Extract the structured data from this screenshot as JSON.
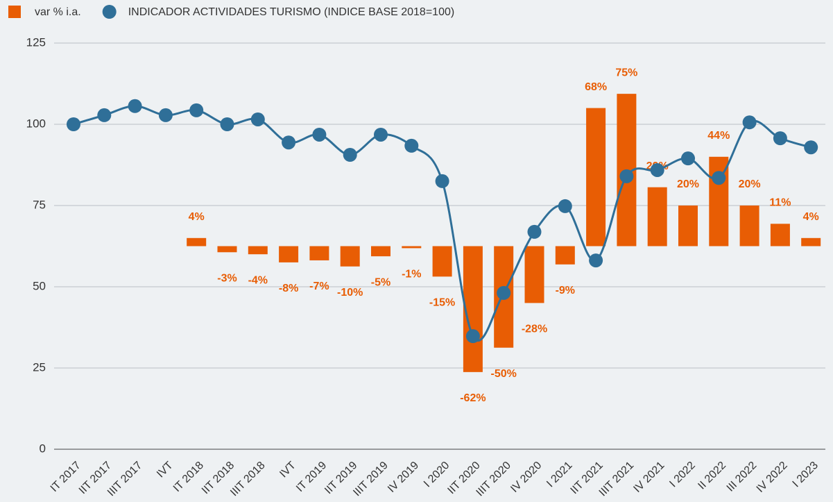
{
  "chart_data": {
    "type": "combo",
    "categories": [
      "IT 2017",
      "IIT 2017",
      "IIIT 2017",
      "IVT",
      "IT 2018",
      "IIT 2018",
      "IIIT 2018",
      "IVT",
      "IT 2019",
      "IIT 2019",
      "IIIT 2019",
      "IV 2019",
      "I 2020",
      "IIT 2020",
      "IIIT 2020",
      "IV 2020",
      "I 2021",
      "IIT 2021",
      "IIIT 2021",
      "IV 2021",
      "I 2022",
      "II 2022",
      "III 2022",
      "IV 2022",
      "I 2023"
    ],
    "series": [
      {
        "name": "var % i.a.",
        "type": "bar",
        "axis": "y2",
        "color": "#e85d04",
        "values": [
          null,
          null,
          null,
          null,
          4,
          -3,
          -4,
          -8,
          -7,
          -10,
          -5,
          -1,
          -15,
          -62,
          -50,
          -28,
          -9,
          68,
          75,
          29,
          20,
          44,
          20,
          11,
          4
        ],
        "value_labels": [
          null,
          null,
          null,
          null,
          "4%",
          "-3%",
          "-4%",
          "-8%",
          "-7%",
          "-10%",
          "-5%",
          "-1%",
          "-15%",
          "-62%",
          "-50%",
          "-28%",
          "-9%",
          "68%",
          "75%",
          "29%",
          "20%",
          "44%",
          "20%",
          "11%",
          "4%"
        ]
      },
      {
        "name": "INDICADOR ACTIVIDADES TURISMO (INDICE BASE 2018=100)",
        "type": "line",
        "color": "#2f6f98",
        "values": [
          100,
          102.8,
          105.6,
          102.8,
          104.3,
          100,
          101.5,
          94.4,
          96.8,
          90.6,
          96.8,
          93.4,
          82.5,
          34.8,
          48.1,
          66.9,
          74.8,
          58.1,
          84,
          85.9,
          89.5,
          83.5,
          100.6,
          95.7,
          92.9
        ]
      }
    ],
    "ylim": [
      0,
      125
    ],
    "yticks": [
      0,
      25,
      50,
      75,
      100,
      125
    ],
    "y2lim": [
      -100,
      100
    ],
    "grid": true,
    "legend": "top-left"
  }
}
